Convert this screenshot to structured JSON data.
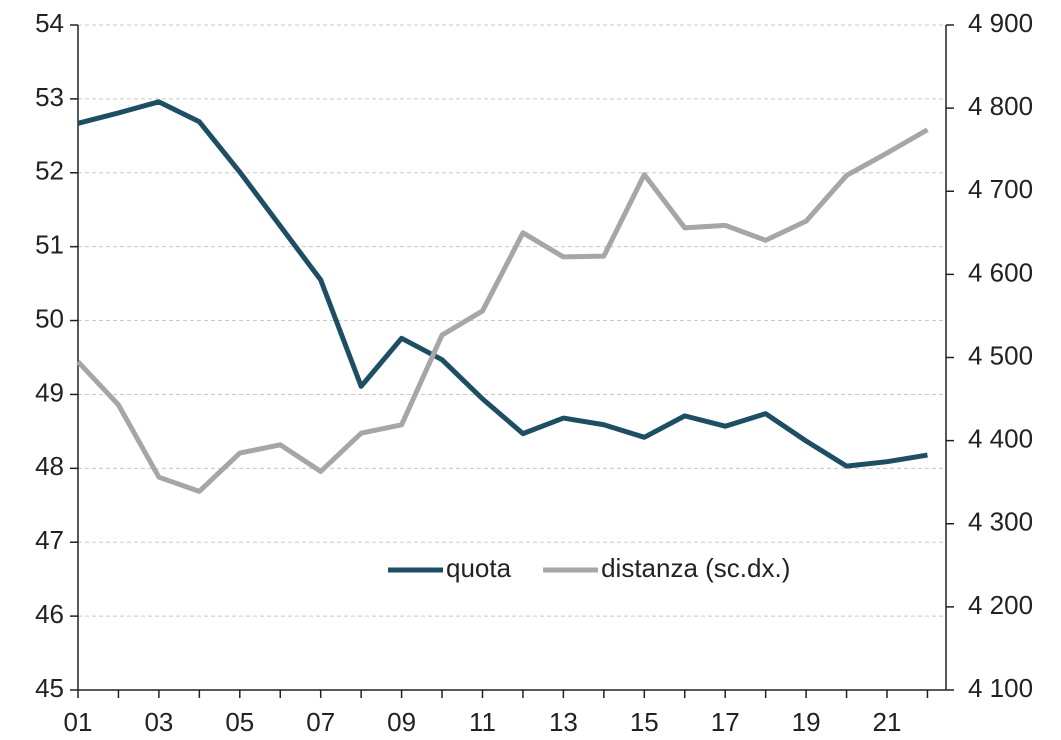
{
  "chart_data": {
    "type": "line",
    "categories": [
      "01",
      null,
      "03",
      null,
      "05",
      null,
      "07",
      null,
      "09",
      null,
      "11",
      null,
      "13",
      null,
      "15",
      null,
      "17",
      null,
      "19",
      null,
      "21",
      null
    ],
    "series": [
      {
        "name": "quota",
        "color": "#1d4e63",
        "values": [
          52.67,
          52.81,
          52.96,
          52.69,
          52.01,
          51.28,
          50.55,
          49.11,
          49.76,
          49.47,
          48.94,
          48.47,
          48.68,
          48.59,
          48.42,
          48.71,
          48.57,
          48.74,
          48.37,
          48.03,
          48.09,
          48.18
        ]
      },
      {
        "name": "distanza (sc.dx.)",
        "color": "#a6a6a6",
        "axis": "y2",
        "values": [
          4495,
          4443,
          4356,
          4339,
          4385,
          4395,
          4363,
          4409,
          4419,
          4527,
          4556,
          4650,
          4621,
          4622,
          4720,
          4656,
          4659,
          4641,
          4664,
          4719,
          4746,
          4774
        ]
      }
    ],
    "ylim": [
      45,
      54
    ],
    "yticks": [
      45,
      46,
      47,
      48,
      49,
      50,
      51,
      52,
      53,
      54
    ],
    "y2lim": [
      4100,
      4900
    ],
    "y2ticks": [
      {
        "value": 4100,
        "label": "4 100"
      },
      {
        "value": 4200,
        "label": "4 200"
      },
      {
        "value": 4300,
        "label": "4 300"
      },
      {
        "value": 4400,
        "label": "4 400"
      },
      {
        "value": 4500,
        "label": "4 500"
      },
      {
        "value": 4600,
        "label": "4 600"
      },
      {
        "value": 4700,
        "label": "4 700"
      },
      {
        "value": 4800,
        "label": "4 800"
      },
      {
        "value": 4900,
        "label": "4 900"
      }
    ],
    "grid": true,
    "legend": "lower center"
  }
}
